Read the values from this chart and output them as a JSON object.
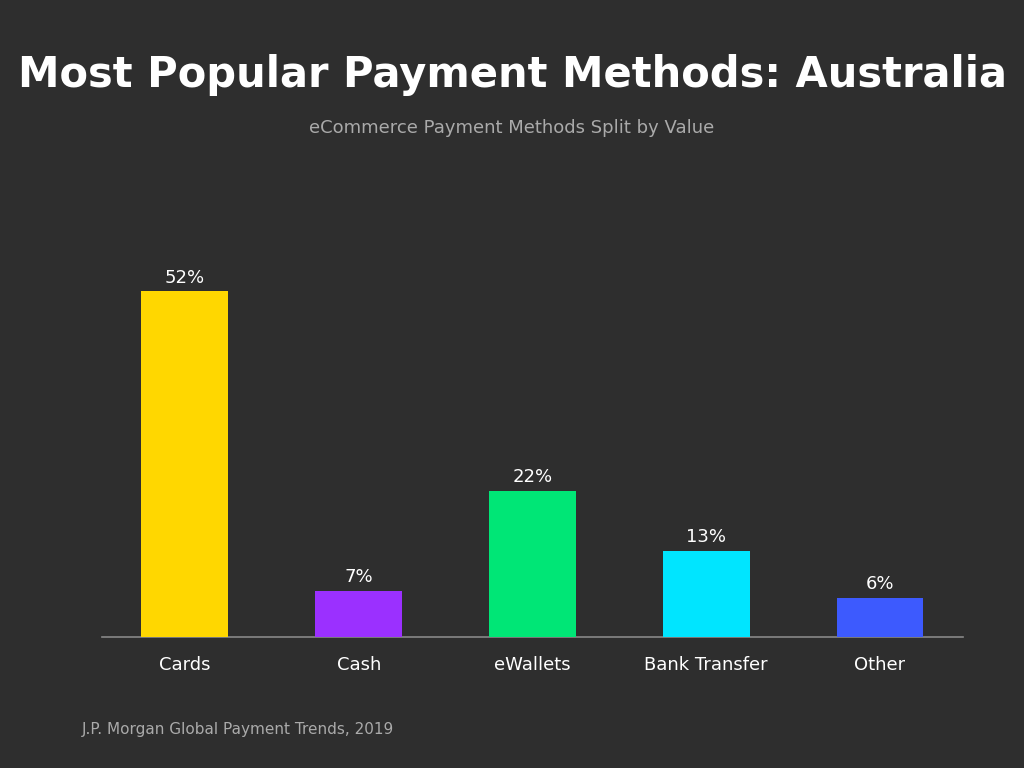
{
  "title": "Most Popular Payment Methods: Australia",
  "subtitle": "eCommerce Payment Methods Split by Value",
  "categories": [
    "Cards",
    "Cash",
    "eWallets",
    "Bank Transfer",
    "Other"
  ],
  "values": [
    52,
    7,
    22,
    13,
    6
  ],
  "labels": [
    "52%",
    "7%",
    "22%",
    "13%",
    "6%"
  ],
  "bar_colors": [
    "#FFD700",
    "#9B30FF",
    "#00E676",
    "#00E5FF",
    "#3D5AFE"
  ],
  "background_color": "#2e2e2e",
  "text_color": "#ffffff",
  "subtitle_color": "#aaaaaa",
  "footnote": "J.P. Morgan Global Payment Trends, 2019",
  "title_fontsize": 30,
  "subtitle_fontsize": 13,
  "label_fontsize": 13,
  "tick_fontsize": 13,
  "footnote_fontsize": 11,
  "ylim": [
    0,
    60
  ],
  "bar_width": 0.5
}
